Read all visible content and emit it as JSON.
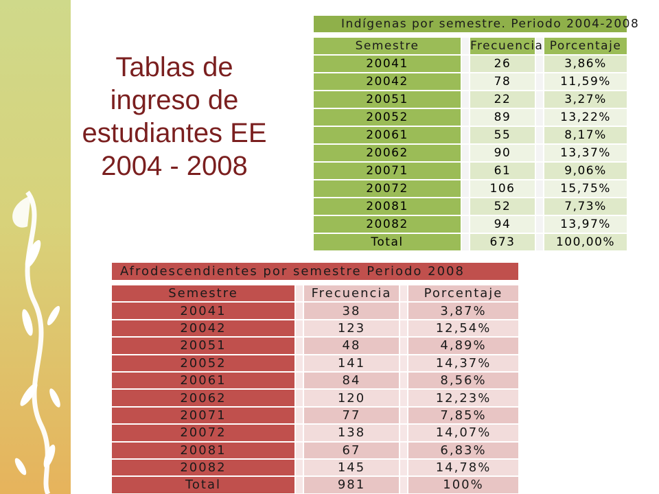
{
  "slide": {
    "title_lines": [
      "Tablas de",
      "ingreso de",
      "estudiantes EE",
      "2004 - 2008"
    ]
  },
  "table_indigenas": {
    "caption": "Indígenas por semestre. Periodo 2004-2008",
    "headers": [
      "Semestre",
      "Frecuencia",
      "Porcentaje"
    ],
    "rows": [
      [
        "20041",
        "26",
        "3,86%"
      ],
      [
        "20042",
        "78",
        "11,59%"
      ],
      [
        "20051",
        "22",
        "3,27%"
      ],
      [
        "20052",
        "89",
        "13,22%"
      ],
      [
        "20061",
        "55",
        "8,17%"
      ],
      [
        "20062",
        "90",
        "13,37%"
      ],
      [
        "20071",
        "61",
        "9,06%"
      ],
      [
        "20072",
        "106",
        "15,75%"
      ],
      [
        "20081",
        "52",
        "7,73%"
      ],
      [
        "20082",
        "94",
        "13,97%"
      ],
      [
        "Total",
        "673",
        "100,00%"
      ]
    ]
  },
  "table_afro": {
    "caption": "Afrodescendientes por semestre Periodo 2008",
    "headers": [
      "Semestre",
      "Frecuencia",
      "Porcentaje"
    ],
    "rows": [
      [
        "20041",
        "38",
        "3,87%"
      ],
      [
        "20042",
        "123",
        "12,54%"
      ],
      [
        "20051",
        "48",
        "4,89%"
      ],
      [
        "20052",
        "141",
        "14,37%"
      ],
      [
        "20061",
        "84",
        "8,56%"
      ],
      [
        "20062",
        "120",
        "12,23%"
      ],
      [
        "20071",
        "77",
        "7,85%"
      ],
      [
        "20072",
        "138",
        "14,07%"
      ],
      [
        "20081",
        "67",
        "6,83%"
      ],
      [
        "20082",
        "145",
        "14,78%"
      ],
      [
        "Total",
        "981",
        "100%"
      ]
    ]
  },
  "colors": {
    "title": "#7a1f1f",
    "green_header": "#9bbc57",
    "green_row": "#dfe9c9",
    "red_header": "#c0504d",
    "red_row": "#e8c5c4",
    "band_top": "#cfd98a",
    "band_bottom": "#e6b35c"
  },
  "decoration": {
    "band_ornament": "ribbon-leaf-ornament"
  }
}
